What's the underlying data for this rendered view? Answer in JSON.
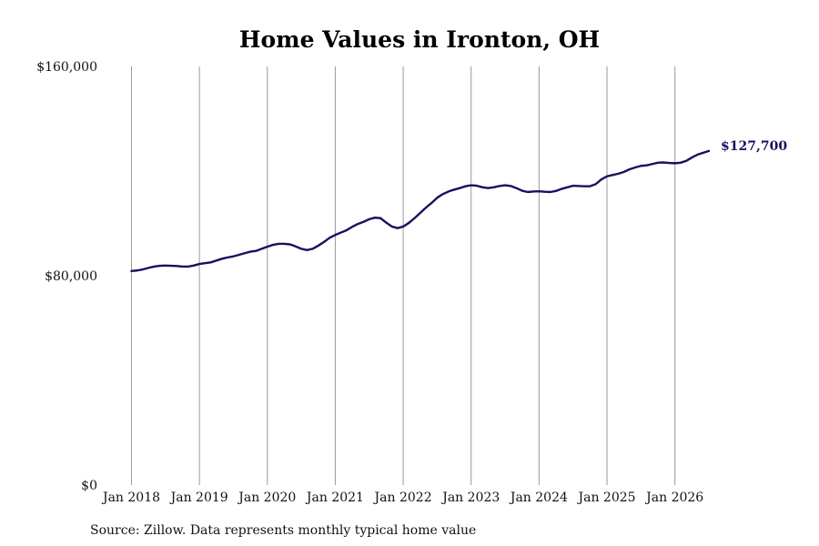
{
  "chart_data": {
    "type": "line",
    "title": "Home Values in Ironton, OH",
    "source": "Source: Zillow. Data represents monthly typical home value",
    "end_label": "$127,700",
    "line_color": "#14125e",
    "grid_color": "#9a9a9a",
    "x_tick_labels": [
      "Jan 2018",
      "Jan 2019",
      "Jan 2020",
      "Jan 2021",
      "Jan 2022",
      "Jan 2023",
      "Jan 2024",
      "Jan 2025",
      "Jan 2026"
    ],
    "y_tick_labels": [
      "$0",
      "$80,000",
      "$160,000"
    ],
    "y_ticks": [
      0,
      80000,
      160000
    ],
    "ylim": [
      0,
      160000
    ],
    "xlim": [
      "2018-01",
      "2026-07"
    ],
    "grid": "vertical",
    "series": [
      {
        "points": [
          [
            "2018-01",
            81800
          ],
          [
            "2018-02",
            82000
          ],
          [
            "2018-03",
            82400
          ],
          [
            "2018-04",
            83000
          ],
          [
            "2018-05",
            83500
          ],
          [
            "2018-06",
            83800
          ],
          [
            "2018-07",
            83900
          ],
          [
            "2018-08",
            83800
          ],
          [
            "2018-09",
            83700
          ],
          [
            "2018-10",
            83500
          ],
          [
            "2018-11",
            83500
          ],
          [
            "2018-12",
            83900
          ],
          [
            "2019-01",
            84500
          ],
          [
            "2019-02",
            84800
          ],
          [
            "2019-03",
            85100
          ],
          [
            "2019-04",
            85800
          ],
          [
            "2019-05",
            86500
          ],
          [
            "2019-06",
            87000
          ],
          [
            "2019-07",
            87400
          ],
          [
            "2019-08",
            88000
          ],
          [
            "2019-09",
            88600
          ],
          [
            "2019-10",
            89200
          ],
          [
            "2019-11",
            89500
          ],
          [
            "2019-12",
            90300
          ],
          [
            "2020-01",
            91100
          ],
          [
            "2020-02",
            91800
          ],
          [
            "2020-03",
            92200
          ],
          [
            "2020-04",
            92200
          ],
          [
            "2020-05",
            92000
          ],
          [
            "2020-06",
            91200
          ],
          [
            "2020-07",
            90300
          ],
          [
            "2020-08",
            89800
          ],
          [
            "2020-09",
            90300
          ],
          [
            "2020-10",
            91500
          ],
          [
            "2020-11",
            92900
          ],
          [
            "2020-12",
            94500
          ],
          [
            "2021-01",
            95600
          ],
          [
            "2021-02",
            96500
          ],
          [
            "2021-03",
            97400
          ],
          [
            "2021-04",
            98700
          ],
          [
            "2021-05",
            99800
          ],
          [
            "2021-06",
            100600
          ],
          [
            "2021-07",
            101600
          ],
          [
            "2021-08",
            102200
          ],
          [
            "2021-09",
            102000
          ],
          [
            "2021-10",
            100300
          ],
          [
            "2021-11",
            98800
          ],
          [
            "2021-12",
            98200
          ],
          [
            "2022-01",
            98800
          ],
          [
            "2022-02",
            100200
          ],
          [
            "2022-03",
            102000
          ],
          [
            "2022-04",
            104000
          ],
          [
            "2022-05",
            106000
          ],
          [
            "2022-06",
            107800
          ],
          [
            "2022-07",
            109800
          ],
          [
            "2022-08",
            111200
          ],
          [
            "2022-09",
            112200
          ],
          [
            "2022-10",
            112900
          ],
          [
            "2022-11",
            113500
          ],
          [
            "2022-12",
            114200
          ],
          [
            "2023-01",
            114600
          ],
          [
            "2023-02",
            114400
          ],
          [
            "2023-03",
            113800
          ],
          [
            "2023-04",
            113500
          ],
          [
            "2023-05",
            113800
          ],
          [
            "2023-06",
            114300
          ],
          [
            "2023-07",
            114600
          ],
          [
            "2023-08",
            114300
          ],
          [
            "2023-09",
            113500
          ],
          [
            "2023-10",
            112500
          ],
          [
            "2023-11",
            112000
          ],
          [
            "2023-12",
            112200
          ],
          [
            "2024-01",
            112300
          ],
          [
            "2024-02",
            112100
          ],
          [
            "2024-03",
            112000
          ],
          [
            "2024-04",
            112400
          ],
          [
            "2024-05",
            113200
          ],
          [
            "2024-06",
            113800
          ],
          [
            "2024-07",
            114400
          ],
          [
            "2024-08",
            114300
          ],
          [
            "2024-09",
            114200
          ],
          [
            "2024-10",
            114200
          ],
          [
            "2024-11",
            115000
          ],
          [
            "2024-12",
            116800
          ],
          [
            "2025-01",
            118000
          ],
          [
            "2025-02",
            118500
          ],
          [
            "2025-03",
            119000
          ],
          [
            "2025-04",
            119700
          ],
          [
            "2025-05",
            120700
          ],
          [
            "2025-06",
            121400
          ],
          [
            "2025-07",
            122000
          ],
          [
            "2025-08",
            122200
          ],
          [
            "2025-09",
            122700
          ],
          [
            "2025-10",
            123200
          ],
          [
            "2025-11",
            123300
          ],
          [
            "2025-12",
            123100
          ],
          [
            "2026-01",
            123000
          ],
          [
            "2026-02",
            123200
          ],
          [
            "2026-03",
            123900
          ],
          [
            "2026-04",
            125200
          ],
          [
            "2026-05",
            126300
          ],
          [
            "2026-06",
            127000
          ],
          [
            "2026-07",
            127700
          ]
        ]
      }
    ]
  }
}
